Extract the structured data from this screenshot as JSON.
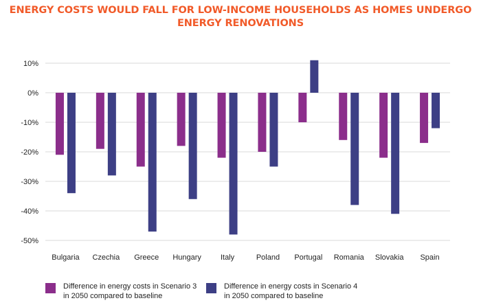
{
  "chart_data": {
    "type": "bar",
    "title_lines": [
      "ENERGY COSTS WOULD FALL FOR LOW-INCOME HOUSEHOLDS AS HOMES UNDERGO",
      "ENERGY RENOVATIONS"
    ],
    "categories": [
      "Bulgaria",
      "Czechia",
      "Greece",
      "Hungary",
      "Italy",
      "Poland",
      "Portugal",
      "Romania",
      "Slovakia",
      "Spain"
    ],
    "series": [
      {
        "name_lines": [
          "Difference in energy costs in Scenario 3",
          "in 2050 compared to baseline"
        ],
        "color": "#8b2e8b",
        "values": [
          -21,
          -19,
          -25,
          -18,
          -22,
          -20,
          -10,
          -16,
          -22,
          -17
        ]
      },
      {
        "name_lines": [
          "Difference in energy costs in Scenario 4",
          "in 2050 compared to baseline"
        ],
        "color": "#3d3f85",
        "values": [
          -34,
          -28,
          -47,
          -36,
          -48,
          -25,
          11,
          -38,
          -41,
          -12
        ]
      }
    ],
    "ylim": [
      -50,
      10
    ],
    "yticks": [
      10,
      0,
      -10,
      -20,
      -30,
      -40,
      -50
    ],
    "ytick_labels": [
      "10%",
      "0%",
      "-10%",
      "-20%",
      "-30%",
      "-40%",
      "-50%"
    ],
    "grid": true,
    "legend_position": "bottom"
  }
}
